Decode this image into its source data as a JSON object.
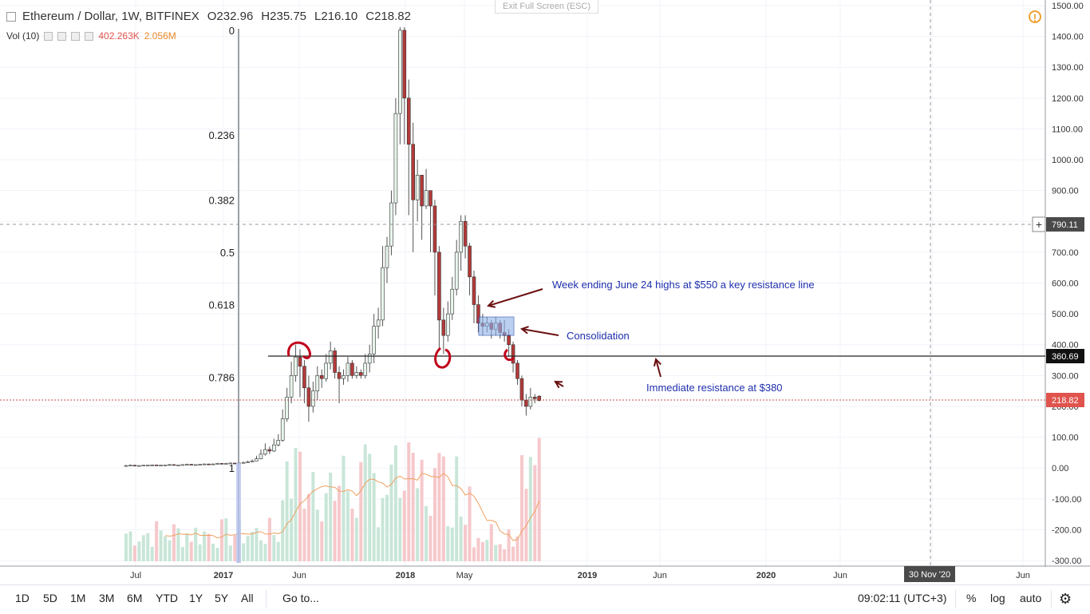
{
  "header": {
    "symbol": "Ethereum / Dollar, 1W, BITFINEX",
    "ohlc": [
      {
        "k": "O",
        "v": "232.96"
      },
      {
        "k": "H",
        "v": "235.75"
      },
      {
        "k": "L",
        "v": "216.10"
      },
      {
        "k": "C",
        "v": "218.82"
      }
    ],
    "vol_label": "Vol (10)",
    "vol_value": "402.263K",
    "vol_ma": "2.056M",
    "exit_fullscreen": "Exit Full Screen (ESC)",
    "warning_icon": "warning-icon"
  },
  "chart_data": {
    "type": "candlestick",
    "y_axis": {
      "min": -300,
      "max": 1500,
      "step": 100,
      "labels": [
        "1500.00",
        "1400.00",
        "1300.00",
        "1200.00",
        "1100.00",
        "1000.00",
        "900.00",
        "800.00",
        "700.00",
        "600.00",
        "500.00",
        "400.00",
        "300.00",
        "200.00",
        "100.00",
        "0.00",
        "-100.00",
        "-200.00",
        "-300.00"
      ]
    },
    "x_axis_labels": [
      "Jul",
      "2017",
      "Jun",
      "2018",
      "May",
      "2019",
      "Jun",
      "2020",
      "Jun",
      "Jun"
    ],
    "x_crosshair_label": "30 Nov '20",
    "y_crosshair_label": "790.11",
    "current_price_label": "218.82",
    "resistance_price_label": "360.69",
    "fib_levels": [
      {
        "label": "0",
        "price": 1420
      },
      {
        "label": "0.236",
        "price": 1080
      },
      {
        "label": "0.382",
        "price": 870
      },
      {
        "label": "0.5",
        "price": 700
      },
      {
        "label": "0.618",
        "price": 530
      },
      {
        "label": "0.786",
        "price": 295
      },
      {
        "label": "1",
        "price": 0
      }
    ],
    "annotations": [
      {
        "text": "Week ending June 24 highs at $550 a key resistance line"
      },
      {
        "text": "Consolidation"
      },
      {
        "text": "Immediate resistance at $380"
      }
    ],
    "candles": [
      [
        8,
        8,
        10,
        7
      ],
      [
        8,
        9,
        11,
        7
      ],
      [
        9,
        8,
        10,
        7
      ],
      [
        8,
        8,
        9,
        7
      ],
      [
        8,
        9,
        10,
        7
      ],
      [
        9,
        9,
        10,
        8
      ],
      [
        9,
        10,
        12,
        8
      ],
      [
        10,
        9,
        11,
        8
      ],
      [
        9,
        9,
        10,
        8
      ],
      [
        9,
        10,
        11,
        8
      ],
      [
        10,
        11,
        13,
        9
      ],
      [
        11,
        10,
        12,
        9
      ],
      [
        10,
        10,
        11,
        9
      ],
      [
        10,
        11,
        12,
        9
      ],
      [
        11,
        12,
        14,
        10
      ],
      [
        12,
        11,
        13,
        10
      ],
      [
        11,
        11,
        12,
        10
      ],
      [
        11,
        12,
        13,
        10
      ],
      [
        12,
        13,
        15,
        11
      ],
      [
        13,
        12,
        14,
        11
      ],
      [
        12,
        13,
        15,
        11
      ],
      [
        13,
        15,
        17,
        12
      ],
      [
        15,
        14,
        16,
        13
      ],
      [
        14,
        15,
        17,
        13
      ],
      [
        15,
        16,
        18,
        14
      ],
      [
        16,
        15,
        17,
        14
      ],
      [
        15,
        16,
        19,
        14
      ],
      [
        16,
        18,
        21,
        15
      ],
      [
        18,
        20,
        24,
        17
      ],
      [
        20,
        23,
        28,
        19
      ],
      [
        23,
        30,
        40,
        22
      ],
      [
        30,
        45,
        60,
        28
      ],
      [
        45,
        60,
        80,
        40
      ],
      [
        60,
        55,
        70,
        45
      ],
      [
        55,
        75,
        95,
        52
      ],
      [
        75,
        90,
        110,
        70
      ],
      [
        90,
        160,
        190,
        85
      ],
      [
        160,
        230,
        260,
        150
      ],
      [
        230,
        300,
        345,
        210
      ],
      [
        300,
        360,
        400,
        280
      ],
      [
        360,
        330,
        385,
        230
      ],
      [
        330,
        260,
        350,
        210
      ],
      [
        260,
        200,
        300,
        150
      ],
      [
        200,
        250,
        280,
        180
      ],
      [
        250,
        300,
        330,
        220
      ],
      [
        300,
        290,
        320,
        260
      ],
      [
        290,
        340,
        370,
        280
      ],
      [
        340,
        380,
        410,
        320
      ],
      [
        380,
        310,
        390,
        290
      ],
      [
        310,
        290,
        330,
        210
      ],
      [
        290,
        300,
        320,
        270
      ],
      [
        300,
        340,
        360,
        280
      ],
      [
        340,
        300,
        350,
        290
      ],
      [
        300,
        310,
        330,
        290
      ],
      [
        310,
        300,
        320,
        290
      ],
      [
        300,
        340,
        370,
        290
      ],
      [
        340,
        370,
        400,
        310
      ],
      [
        370,
        460,
        500,
        340
      ],
      [
        460,
        480,
        520,
        420
      ],
      [
        480,
        650,
        720,
        460
      ],
      [
        650,
        720,
        750,
        600
      ],
      [
        720,
        860,
        900,
        690
      ],
      [
        860,
        1150,
        1200,
        820
      ],
      [
        1150,
        1420,
        1430,
        1050
      ],
      [
        1420,
        1200,
        1430,
        1050
      ],
      [
        1200,
        1050,
        1260,
        820
      ],
      [
        1050,
        870,
        1120,
        700
      ],
      [
        870,
        950,
        1000,
        800
      ],
      [
        950,
        850,
        950,
        740
      ],
      [
        850,
        900,
        970,
        840
      ],
      [
        900,
        850,
        900,
        700
      ],
      [
        850,
        700,
        870,
        560
      ],
      [
        700,
        480,
        720,
        380
      ],
      [
        480,
        430,
        520,
        370
      ],
      [
        430,
        500,
        540,
        410
      ],
      [
        500,
        580,
        620,
        480
      ],
      [
        580,
        700,
        740,
        560
      ],
      [
        700,
        800,
        820,
        640
      ],
      [
        800,
        720,
        820,
        680
      ],
      [
        720,
        620,
        730,
        560
      ],
      [
        620,
        530,
        640,
        470
      ],
      [
        530,
        470,
        560,
        440
      ],
      [
        470,
        460,
        500,
        430
      ],
      [
        460,
        470,
        490,
        440
      ],
      [
        470,
        450,
        480,
        420
      ],
      [
        450,
        470,
        490,
        430
      ],
      [
        470,
        440,
        480,
        420
      ],
      [
        440,
        430,
        480,
        410
      ],
      [
        430,
        400,
        450,
        360
      ],
      [
        400,
        340,
        410,
        310
      ],
      [
        340,
        290,
        350,
        270
      ],
      [
        290,
        220,
        300,
        200
      ],
      [
        220,
        200,
        240,
        170
      ],
      [
        200,
        230,
        260,
        190
      ],
      [
        230,
        225,
        240,
        210
      ],
      [
        233,
        219,
        236,
        216
      ]
    ]
  },
  "bottom_bar": {
    "ranges": [
      "1D",
      "5D",
      "1M",
      "3M",
      "6M",
      "YTD",
      "1Y",
      "5Y",
      "All"
    ],
    "goto": "Go to...",
    "time": "09:02:11 (UTC+3)",
    "percent": "%",
    "log": "log",
    "auto": "auto",
    "settings_icon": "gear-icon"
  }
}
